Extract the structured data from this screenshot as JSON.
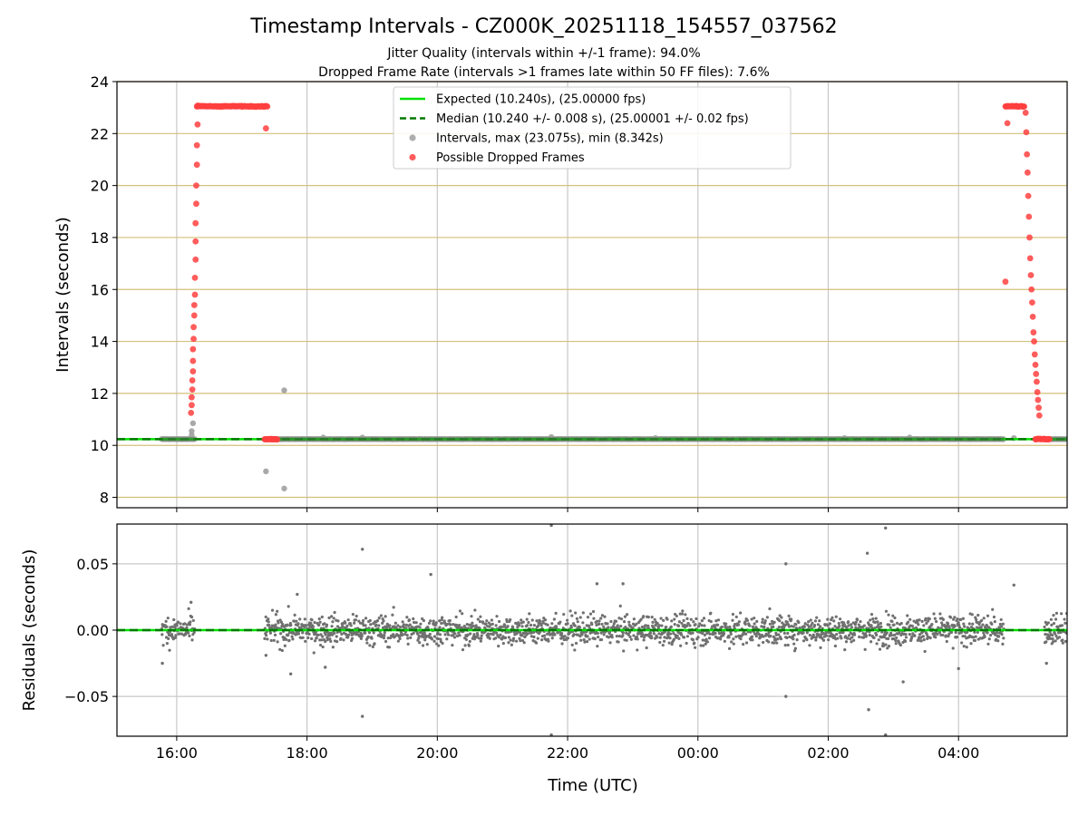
{
  "header": {
    "title": "Timestamp Intervals - CZ000K_20251118_154557_037562",
    "subtitle_1": "Jitter Quality (intervals within +/-1 frame): 94.0%",
    "subtitle_2": "Dropped Frame Rate (intervals >1 frames late within 50 FF files): 7.6%"
  },
  "colors": {
    "expected": "#00e000",
    "median": "#007a00",
    "intervals": "#a0a0a0",
    "dropped": "#ff4040",
    "residuals": "#707070",
    "hgrid": "#d4c07a",
    "vgrid": "#c8c8c8"
  },
  "chart_data": [
    {
      "id": "top",
      "type": "scatter",
      "ylabel": "Intervals (seconds)",
      "xlabel": "",
      "x_unit": "hours since 00:00 UTC 2025-11-18",
      "xlim": [
        15.083,
        29.667
      ],
      "ylim": [
        7.6,
        24.0
      ],
      "yticks": [
        8,
        10,
        12,
        14,
        16,
        18,
        20,
        22,
        24
      ],
      "ytick_labels": [
        "8",
        "10",
        "12",
        "14",
        "16",
        "18",
        "20",
        "22",
        "24"
      ],
      "xticks": [
        16,
        18,
        20,
        22,
        24,
        26,
        28
      ],
      "grid": {
        "y": true,
        "x": true
      },
      "legend": {
        "placement": "top-center",
        "entries": [
          {
            "label": "Expected (10.240s), (25.00000 fps)",
            "kind": "line",
            "style": "solid",
            "color_key": "expected"
          },
          {
            "label": "Median (10.240 +/- 0.008 s), (25.00001 +/- 0.02 fps)",
            "kind": "line",
            "style": "dashed",
            "color_key": "median"
          },
          {
            "label": "Intervals, max (23.075s), min (8.342s)",
            "kind": "marker",
            "color_key": "intervals"
          },
          {
            "label": "Possible Dropped Frames",
            "kind": "marker",
            "color_key": "dropped"
          }
        ]
      },
      "expected_value": 10.24,
      "median_value": 10.24,
      "series": [
        {
          "name": "Intervals, max (23.075s), min (8.342s)",
          "kind": "segments",
          "segments": [
            [
              15.77,
              16.28
            ],
            [
              17.35,
              28.7
            ],
            [
              29.32,
              29.667
            ]
          ],
          "y": 10.24
        },
        {
          "name": "Intervals, max (23.075s), min (8.342s)",
          "kind": "points",
          "x": [
            16.23,
            16.23,
            16.25,
            17.37,
            17.65,
            17.65,
            18.25,
            18.85,
            21.75,
            23.35,
            26.25,
            27.25,
            28.85
          ],
          "y": [
            10.4,
            10.55,
            10.85,
            9.0,
            12.12,
            8.34,
            10.3,
            10.3,
            10.32,
            10.28,
            10.28,
            10.3,
            10.28
          ]
        },
        {
          "name": "Possible Dropped Frames",
          "kind": "points",
          "x": [
            16.22,
            16.23,
            16.23,
            16.24,
            16.24,
            16.25,
            16.25,
            16.25,
            16.26,
            16.26,
            16.27,
            16.27,
            16.28,
            16.28,
            16.29,
            16.29,
            16.29,
            16.3,
            16.3,
            16.31,
            16.31,
            16.32,
            16.32,
            16.33,
            16.33,
            17.37,
            28.72,
            28.75,
            29.03,
            29.04,
            29.05,
            29.06,
            29.07,
            29.08,
            29.09,
            29.1,
            29.11,
            29.12,
            29.13,
            29.14,
            29.15,
            29.16,
            29.17,
            29.18,
            29.19,
            29.2,
            29.21,
            29.22,
            29.23,
            29.24
          ],
          "y": [
            11.25,
            11.55,
            11.85,
            12.15,
            12.5,
            12.85,
            13.25,
            13.7,
            14.1,
            14.55,
            15.0,
            15.4,
            15.8,
            16.45,
            17.15,
            17.85,
            18.55,
            19.3,
            20.0,
            20.8,
            21.55,
            22.35,
            23.07,
            23.07,
            23.07,
            22.2,
            16.3,
            22.4,
            22.8,
            22.05,
            21.2,
            20.5,
            19.6,
            18.8,
            18.0,
            17.2,
            16.55,
            16.0,
            15.5,
            14.95,
            14.35,
            14.0,
            13.5,
            13.1,
            12.75,
            12.45,
            12.05,
            11.75,
            11.45,
            11.15
          ],
          "bands": [
            {
              "x_from": 16.31,
              "x_to": 17.4,
              "y": 23.05
            },
            {
              "x_from": 28.72,
              "x_to": 29.02,
              "y": 23.05
            },
            {
              "x_from": 17.35,
              "x_to": 17.55,
              "y": 10.24
            },
            {
              "x_from": 29.18,
              "x_to": 29.4,
              "y": 10.24
            }
          ]
        }
      ]
    },
    {
      "id": "bottom",
      "type": "scatter",
      "ylabel": "Residuals (seconds)",
      "xlabel": "Time (UTC)",
      "x_unit": "hours since 00:00 UTC 2025-11-18",
      "xlim": [
        15.083,
        29.667
      ],
      "ylim": [
        -0.08,
        0.08
      ],
      "yticks": [
        -0.05,
        0.0,
        0.05
      ],
      "ytick_labels": [
        "−0.05",
        "0.00",
        "0.05"
      ],
      "xticks": [
        16,
        18,
        20,
        22,
        24,
        26,
        28
      ],
      "xtick_labels": [
        "16:00",
        "18:00",
        "20:00",
        "22:00",
        "00:00",
        "02:00",
        "04:00"
      ],
      "grid": {
        "y": true,
        "x": true
      },
      "zero_line": 0.0,
      "residual_spread": {
        "segments": [
          [
            15.77,
            16.28
          ],
          [
            17.35,
            28.7
          ],
          [
            29.32,
            29.667
          ]
        ],
        "typical_std": 0.008
      },
      "series": [
        {
          "name": "Residuals",
          "kind": "points",
          "x": [
            15.78,
            16.22,
            17.37,
            17.75,
            17.85,
            18.28,
            18.85,
            18.85,
            19.9,
            21.75,
            21.75,
            22.45,
            22.85,
            25.35,
            25.35,
            26.6,
            26.62,
            26.88,
            26.88,
            27.15,
            28.0,
            28.85,
            29.35
          ],
          "y": [
            -0.025,
            0.021,
            -0.019,
            -0.033,
            0.027,
            -0.028,
            0.061,
            -0.065,
            0.042,
            0.079,
            -0.079,
            0.035,
            0.035,
            0.05,
            -0.05,
            0.058,
            -0.06,
            0.077,
            -0.079,
            -0.039,
            -0.029,
            0.034,
            -0.025
          ]
        }
      ]
    }
  ]
}
